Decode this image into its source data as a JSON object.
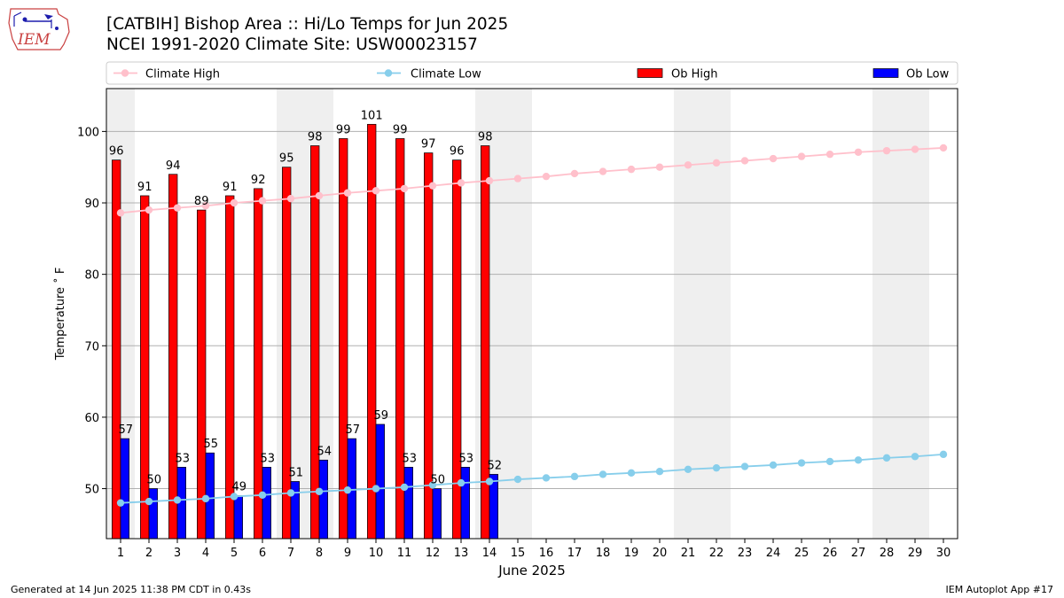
{
  "header": {
    "title_line1": "[CATBIH] Bishop Area :: Hi/Lo Temps for Jun 2025",
    "title_line2": "NCEI 1991-2020 Climate Site: USW00023157",
    "logo_text": "IEM"
  },
  "footer": {
    "generated": "Generated at 14 Jun 2025 11:38 PM CDT in 0.43s",
    "app": "IEM Autoplot App #17"
  },
  "chart_data": {
    "type": "bar",
    "xlabel": "June 2025",
    "ylabel": "Temperature ˚ F",
    "xlim": [
      0.5,
      30.5
    ],
    "ylim": [
      43,
      106
    ],
    "yticks": [
      50,
      60,
      70,
      80,
      90,
      100
    ],
    "grid": "horizontal",
    "legend_position": "top",
    "weekend_days": [
      1,
      7,
      8,
      14,
      15,
      21,
      22,
      28,
      29
    ],
    "days": [
      1,
      2,
      3,
      4,
      5,
      6,
      7,
      8,
      9,
      10,
      11,
      12,
      13,
      14,
      15,
      16,
      17,
      18,
      19,
      20,
      21,
      22,
      23,
      24,
      25,
      26,
      27,
      28,
      29,
      30
    ],
    "series": [
      {
        "name": "Climate High",
        "kind": "line",
        "color": "#ffc0cb",
        "values": [
          88.6,
          89.0,
          89.3,
          89.6,
          90.0,
          90.3,
          90.6,
          91.0,
          91.4,
          91.7,
          92.0,
          92.4,
          92.8,
          93.1,
          93.4,
          93.7,
          94.1,
          94.4,
          94.7,
          95.0,
          95.3,
          95.6,
          95.9,
          96.2,
          96.5,
          96.8,
          97.1,
          97.3,
          97.5,
          97.7
        ]
      },
      {
        "name": "Climate Low",
        "kind": "line",
        "color": "#87ceeb",
        "values": [
          48.0,
          48.2,
          48.4,
          48.6,
          48.9,
          49.1,
          49.4,
          49.6,
          49.8,
          50.0,
          50.2,
          50.5,
          50.8,
          51.0,
          51.3,
          51.5,
          51.7,
          52.0,
          52.2,
          52.4,
          52.7,
          52.9,
          53.1,
          53.3,
          53.6,
          53.8,
          54.0,
          54.3,
          54.5,
          54.8
        ]
      },
      {
        "name": "Ob High",
        "kind": "bar",
        "color": "#ff0000",
        "values": [
          96,
          91,
          94,
          89,
          91,
          92,
          95,
          98,
          99,
          101,
          99,
          97,
          96,
          98
        ]
      },
      {
        "name": "Ob Low",
        "kind": "bar",
        "color": "#0000ff",
        "values": [
          57,
          50,
          53,
          55,
          49,
          53,
          51,
          54,
          57,
          59,
          53,
          50,
          53,
          52
        ]
      }
    ]
  }
}
